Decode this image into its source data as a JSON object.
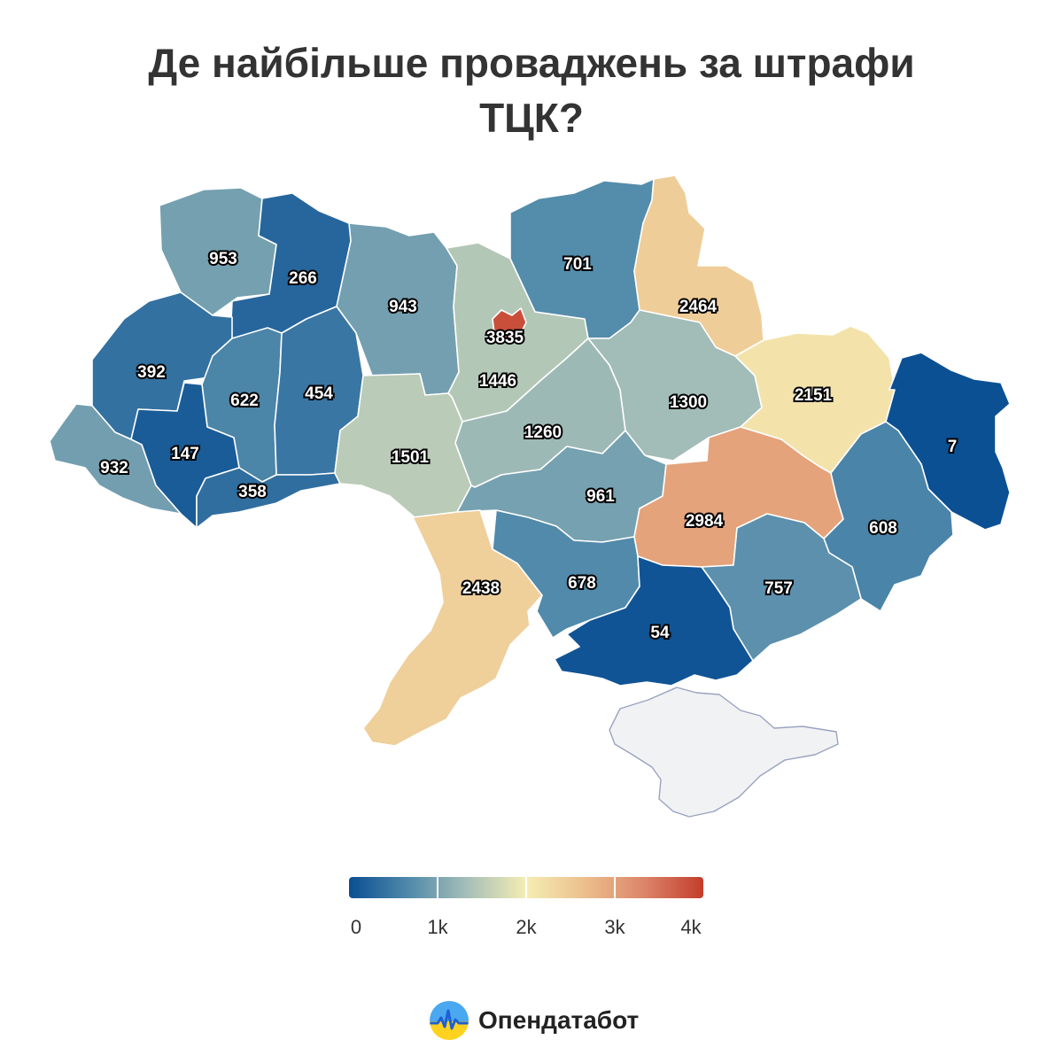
{
  "title": "Де найбільше проваджень за штрафи ТЦК?",
  "legend": {
    "min": 0,
    "max": 4000,
    "tick_labels": [
      "0",
      "1k",
      "2k",
      "3k",
      "4k"
    ],
    "colors": [
      "#0a4f93",
      "#5089aa",
      "#a6bfb8",
      "#f5edb4",
      "#ecbf8c",
      "#dc8469",
      "#c33d2b"
    ]
  },
  "regions": [
    {
      "id": "volyn",
      "value": "953"
    },
    {
      "id": "rivne",
      "value": "266"
    },
    {
      "id": "zhytomyr",
      "value": "943"
    },
    {
      "id": "kyiv-oblast",
      "value": "1446"
    },
    {
      "id": "kyiv-city",
      "value": "3835"
    },
    {
      "id": "chernihiv",
      "value": "701"
    },
    {
      "id": "sumy",
      "value": "2464"
    },
    {
      "id": "lviv",
      "value": "392"
    },
    {
      "id": "ternopil",
      "value": "622"
    },
    {
      "id": "khmelnytskyi",
      "value": "454"
    },
    {
      "id": "ivano-frankivsk",
      "value": "147"
    },
    {
      "id": "zakarpattia",
      "value": "932"
    },
    {
      "id": "chernivtsi",
      "value": "358"
    },
    {
      "id": "vinnytsia",
      "value": "1501"
    },
    {
      "id": "cherkasy",
      "value": "1260"
    },
    {
      "id": "poltava",
      "value": "1300"
    },
    {
      "id": "kharkiv",
      "value": "2151"
    },
    {
      "id": "luhansk",
      "value": "7"
    },
    {
      "id": "kirovohrad",
      "value": "961"
    },
    {
      "id": "dnipropetrovsk",
      "value": "2984"
    },
    {
      "id": "donetsk",
      "value": "608"
    },
    {
      "id": "odesa",
      "value": "2438"
    },
    {
      "id": "mykolaiv",
      "value": "678"
    },
    {
      "id": "zaporizhzhia",
      "value": "757"
    },
    {
      "id": "kherson",
      "value": "54"
    },
    {
      "id": "crimea",
      "value": ""
    }
  ],
  "no_data_color": "#f1f2f4",
  "brand": {
    "name": "Опендатабот",
    "icon": "opendatabot-logo-icon"
  }
}
